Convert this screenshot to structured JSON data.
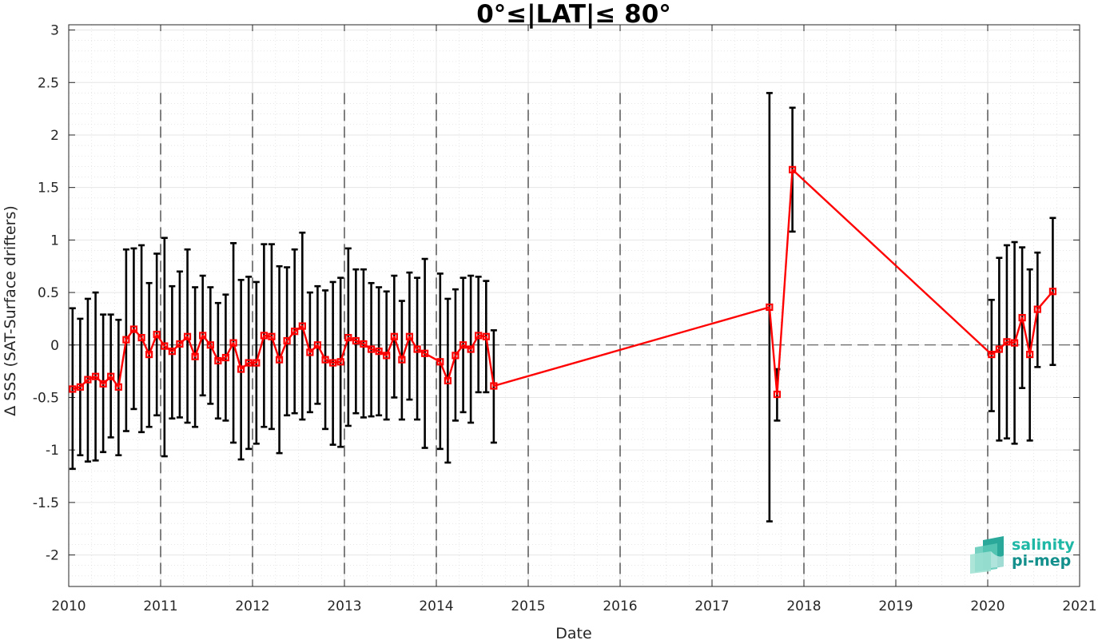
{
  "chart_data": {
    "type": "line",
    "title": "0°≤|LAT|≤ 80°",
    "xlabel": "Date",
    "ylabel": "Δ SSS (SAT-Surface drifters)",
    "xlim": [
      2010,
      2021
    ],
    "ylim": [
      -2.3,
      3.05
    ],
    "x_ticks": [
      "2010",
      "2011",
      "2012",
      "2013",
      "2014",
      "2015",
      "2016",
      "2017",
      "2018",
      "2019",
      "2020",
      "2021"
    ],
    "y_ticks": [
      "3",
      "2.5",
      "2",
      "1.5",
      "1",
      "0.5",
      "0",
      "-0.5",
      "-1",
      "-1.5",
      "-2"
    ],
    "year_divider_lines": "dashed",
    "zero_line": "dashed",
    "grid": "on (major and minor, dotted)",
    "series": [
      {
        "color": "#ff0000",
        "marker": "square",
        "errorbar_color": "#000000",
        "points": [
          {
            "x": 2010.042,
            "y": -0.42,
            "lo": -1.18,
            "hi": 0.35
          },
          {
            "x": 2010.125,
            "y": -0.4,
            "lo": -1.05,
            "hi": 0.25
          },
          {
            "x": 2010.208,
            "y": -0.33,
            "lo": -1.11,
            "hi": 0.44
          },
          {
            "x": 2010.292,
            "y": -0.3,
            "lo": -1.1,
            "hi": 0.5
          },
          {
            "x": 2010.375,
            "y": -0.37,
            "lo": -1.02,
            "hi": 0.29
          },
          {
            "x": 2010.458,
            "y": -0.3,
            "lo": -0.88,
            "hi": 0.29
          },
          {
            "x": 2010.542,
            "y": -0.4,
            "lo": -1.05,
            "hi": 0.24
          },
          {
            "x": 2010.625,
            "y": 0.05,
            "lo": -0.82,
            "hi": 0.91
          },
          {
            "x": 2010.708,
            "y": 0.15,
            "lo": -0.61,
            "hi": 0.92
          },
          {
            "x": 2010.792,
            "y": 0.07,
            "lo": -0.83,
            "hi": 0.95
          },
          {
            "x": 2010.875,
            "y": -0.09,
            "lo": -0.78,
            "hi": 0.59
          },
          {
            "x": 2010.958,
            "y": 0.1,
            "lo": -0.67,
            "hi": 0.87
          },
          {
            "x": 2011.042,
            "y": -0.01,
            "lo": -1.06,
            "hi": 1.02
          },
          {
            "x": 2011.125,
            "y": -0.06,
            "lo": -0.7,
            "hi": 0.56
          },
          {
            "x": 2011.208,
            "y": 0.01,
            "lo": -0.69,
            "hi": 0.7
          },
          {
            "x": 2011.292,
            "y": 0.08,
            "lo": -0.74,
            "hi": 0.91
          },
          {
            "x": 2011.375,
            "y": -0.11,
            "lo": -0.78,
            "hi": 0.55
          },
          {
            "x": 2011.458,
            "y": 0.09,
            "lo": -0.48,
            "hi": 0.66
          },
          {
            "x": 2011.542,
            "y": 0.0,
            "lo": -0.56,
            "hi": 0.55
          },
          {
            "x": 2011.625,
            "y": -0.15,
            "lo": -0.7,
            "hi": 0.4
          },
          {
            "x": 2011.708,
            "y": -0.12,
            "lo": -0.72,
            "hi": 0.48
          },
          {
            "x": 2011.792,
            "y": 0.02,
            "lo": -0.93,
            "hi": 0.97
          },
          {
            "x": 2011.875,
            "y": -0.23,
            "lo": -1.09,
            "hi": 0.62
          },
          {
            "x": 2011.958,
            "y": -0.17,
            "lo": -0.99,
            "hi": 0.65
          },
          {
            "x": 2012.042,
            "y": -0.17,
            "lo": -0.94,
            "hi": 0.6
          },
          {
            "x": 2012.125,
            "y": 0.09,
            "lo": -0.78,
            "hi": 0.96
          },
          {
            "x": 2012.208,
            "y": 0.08,
            "lo": -0.8,
            "hi": 0.96
          },
          {
            "x": 2012.292,
            "y": -0.14,
            "lo": -1.03,
            "hi": 0.75
          },
          {
            "x": 2012.375,
            "y": 0.04,
            "lo": -0.67,
            "hi": 0.74
          },
          {
            "x": 2012.458,
            "y": 0.13,
            "lo": -0.65,
            "hi": 0.91
          },
          {
            "x": 2012.542,
            "y": 0.18,
            "lo": -0.71,
            "hi": 1.07
          },
          {
            "x": 2012.625,
            "y": -0.07,
            "lo": -0.64,
            "hi": 0.5
          },
          {
            "x": 2012.708,
            "y": 0.0,
            "lo": -0.56,
            "hi": 0.56
          },
          {
            "x": 2012.792,
            "y": -0.14,
            "lo": -0.8,
            "hi": 0.52
          },
          {
            "x": 2012.875,
            "y": -0.17,
            "lo": -0.95,
            "hi": 0.6
          },
          {
            "x": 2012.958,
            "y": -0.16,
            "lo": -0.97,
            "hi": 0.64
          },
          {
            "x": 2013.042,
            "y": 0.07,
            "lo": -0.77,
            "hi": 0.92
          },
          {
            "x": 2013.125,
            "y": 0.04,
            "lo": -0.65,
            "hi": 0.72
          },
          {
            "x": 2013.208,
            "y": 0.01,
            "lo": -0.69,
            "hi": 0.72
          },
          {
            "x": 2013.292,
            "y": -0.04,
            "lo": -0.68,
            "hi": 0.59
          },
          {
            "x": 2013.375,
            "y": -0.06,
            "lo": -0.67,
            "hi": 0.55
          },
          {
            "x": 2013.458,
            "y": -0.1,
            "lo": -0.71,
            "hi": 0.51
          },
          {
            "x": 2013.542,
            "y": 0.08,
            "lo": -0.5,
            "hi": 0.66
          },
          {
            "x": 2013.625,
            "y": -0.14,
            "lo": -0.71,
            "hi": 0.42
          },
          {
            "x": 2013.708,
            "y": 0.08,
            "lo": -0.52,
            "hi": 0.69
          },
          {
            "x": 2013.792,
            "y": -0.04,
            "lo": -0.71,
            "hi": 0.64
          },
          {
            "x": 2013.875,
            "y": -0.08,
            "lo": -0.98,
            "hi": 0.82
          },
          {
            "x": 2014.042,
            "y": -0.16,
            "lo": -0.99,
            "hi": 0.68
          },
          {
            "x": 2014.125,
            "y": -0.34,
            "lo": -1.12,
            "hi": 0.44
          },
          {
            "x": 2014.208,
            "y": -0.1,
            "lo": -0.72,
            "hi": 0.53
          },
          {
            "x": 2014.292,
            "y": 0.0,
            "lo": -0.64,
            "hi": 0.64
          },
          {
            "x": 2014.375,
            "y": -0.04,
            "lo": -0.74,
            "hi": 0.66
          },
          {
            "x": 2014.458,
            "y": 0.09,
            "lo": -0.45,
            "hi": 0.65
          },
          {
            "x": 2014.542,
            "y": 0.08,
            "lo": -0.45,
            "hi": 0.61
          },
          {
            "x": 2014.625,
            "y": -0.39,
            "lo": -0.93,
            "hi": 0.14
          },
          {
            "x": 2017.625,
            "y": 0.36,
            "lo": -1.68,
            "hi": 2.4
          },
          {
            "x": 2017.708,
            "y": -0.47,
            "lo": -0.72,
            "hi": -0.23
          },
          {
            "x": 2017.875,
            "y": 1.67,
            "lo": 1.08,
            "hi": 2.26
          },
          {
            "x": 2020.042,
            "y": -0.09,
            "lo": -0.63,
            "hi": 0.43
          },
          {
            "x": 2020.125,
            "y": -0.04,
            "lo": -0.91,
            "hi": 0.83
          },
          {
            "x": 2020.208,
            "y": 0.03,
            "lo": -0.89,
            "hi": 0.95
          },
          {
            "x": 2020.292,
            "y": 0.02,
            "lo": -0.94,
            "hi": 0.98
          },
          {
            "x": 2020.375,
            "y": 0.26,
            "lo": -0.41,
            "hi": 0.93
          },
          {
            "x": 2020.458,
            "y": -0.09,
            "lo": -0.91,
            "hi": 0.72
          },
          {
            "x": 2020.542,
            "y": 0.34,
            "lo": -0.21,
            "hi": 0.88
          },
          {
            "x": 2020.708,
            "y": 0.51,
            "lo": -0.19,
            "hi": 1.21
          }
        ]
      }
    ]
  },
  "logo": {
    "line1": "salinity",
    "line2": "pi-mep",
    "color1": "#1fb8a6",
    "color2": "#138f8c"
  }
}
